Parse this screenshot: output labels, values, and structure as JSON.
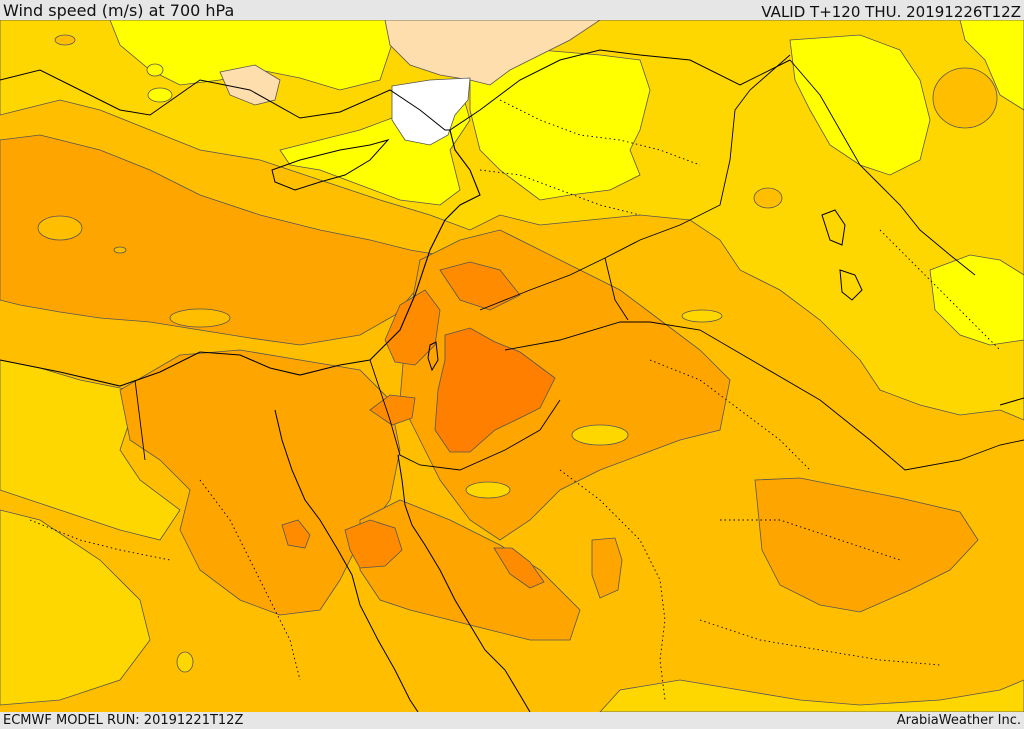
{
  "header": {
    "title": "Wind speed (m/s) at 700 hPa",
    "valid": "VALID T+120 THU. 20191226T12Z"
  },
  "footer": {
    "model_run": "ECMWF MODEL RUN: 20191221T12Z",
    "credit": "ArabiaWeather Inc."
  },
  "map": {
    "field": "wind-speed-700hpa",
    "palette": {
      "calm": "#ffffff",
      "light": "#ffdead",
      "yellow": "#ffff00",
      "gold": "#ffd700",
      "amber": "#ffbf00",
      "orange": "#ffa500",
      "dark_orange": "#ff8c00",
      "deep_orange": "#ff7f00",
      "contour": "#555555",
      "border": "#000000"
    }
  }
}
